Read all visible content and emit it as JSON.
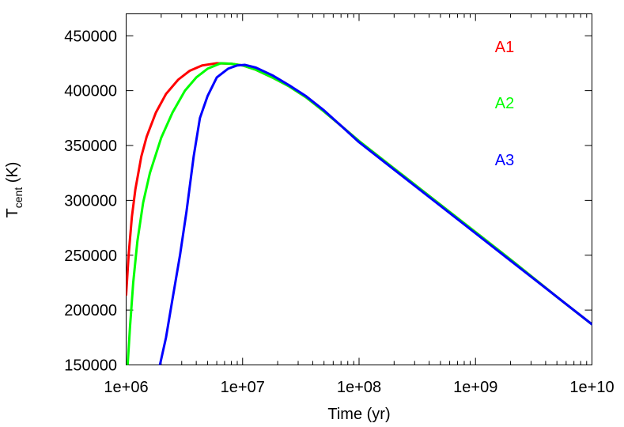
{
  "chart_data": {
    "type": "line",
    "xscale": "log",
    "xlabel": "Time (yr)",
    "ylabel_main": "T",
    "ylabel_sub": "cent",
    "ylabel_unit": " (K)",
    "xlim": [
      1000000,
      10000000000
    ],
    "ylim": [
      150000,
      470000
    ],
    "xticks": [
      {
        "value": 1000000,
        "label": "1e+06"
      },
      {
        "value": 10000000,
        "label": "1e+07"
      },
      {
        "value": 100000000,
        "label": "1e+08"
      },
      {
        "value": 1000000000,
        "label": "1e+09"
      },
      {
        "value": 10000000000,
        "label": "1e+10"
      }
    ],
    "yticks": [
      {
        "value": 150000,
        "label": "150000"
      },
      {
        "value": 200000,
        "label": "200000"
      },
      {
        "value": 250000,
        "label": "250000"
      },
      {
        "value": 300000,
        "label": "300000"
      },
      {
        "value": 350000,
        "label": "350000"
      },
      {
        "value": 400000,
        "label": "400000"
      },
      {
        "value": 450000,
        "label": "450000"
      }
    ],
    "series": [
      {
        "name": "A1",
        "color": "#ff0000",
        "points": [
          [
            1000000,
            214000
          ],
          [
            1050000,
            250000
          ],
          [
            1120000,
            285000
          ],
          [
            1200000,
            310000
          ],
          [
            1350000,
            340000
          ],
          [
            1500000,
            358000
          ],
          [
            1800000,
            380000
          ],
          [
            2200000,
            397000
          ],
          [
            2800000,
            410000
          ],
          [
            3500000,
            418000
          ],
          [
            4500000,
            423000
          ],
          [
            6000000,
            425000
          ],
          [
            8000000,
            424500
          ],
          [
            10000000,
            423000
          ],
          [
            13000000,
            419000
          ],
          [
            18000000,
            412000
          ],
          [
            25000000,
            404000
          ],
          [
            35000000,
            394000
          ],
          [
            50000000,
            381000
          ],
          [
            70000000,
            368000
          ],
          [
            100000000,
            354000
          ],
          [
            200000000,
            329000
          ],
          [
            500000000,
            296000
          ],
          [
            1000000000,
            271000
          ],
          [
            2000000000,
            246000
          ],
          [
            5000000000,
            212000
          ],
          [
            10000000000,
            187000
          ]
        ]
      },
      {
        "name": "A2",
        "color": "#00ff00",
        "points": [
          [
            1030000,
            150000
          ],
          [
            1080000,
            185000
          ],
          [
            1150000,
            225000
          ],
          [
            1250000,
            263000
          ],
          [
            1400000,
            298000
          ],
          [
            1600000,
            325000
          ],
          [
            2000000,
            357000
          ],
          [
            2500000,
            380000
          ],
          [
            3200000,
            400000
          ],
          [
            4000000,
            412000
          ],
          [
            5000000,
            420000
          ],
          [
            6500000,
            425000
          ],
          [
            8000000,
            424500
          ],
          [
            10000000,
            423000
          ],
          [
            13000000,
            419000
          ],
          [
            18000000,
            412000
          ],
          [
            25000000,
            404000
          ],
          [
            35000000,
            394000
          ],
          [
            50000000,
            381000
          ],
          [
            70000000,
            368000
          ],
          [
            100000000,
            354000
          ],
          [
            200000000,
            329000
          ],
          [
            500000000,
            296000
          ],
          [
            1000000000,
            271000
          ],
          [
            2000000000,
            246000
          ],
          [
            5000000000,
            212000
          ],
          [
            10000000000,
            187000
          ]
        ]
      },
      {
        "name": "A3",
        "color": "#0000ff",
        "points": [
          [
            1950000,
            150000
          ],
          [
            2200000,
            175000
          ],
          [
            2500000,
            210000
          ],
          [
            2900000,
            250000
          ],
          [
            3300000,
            290000
          ],
          [
            3800000,
            340000
          ],
          [
            4300000,
            375000
          ],
          [
            5000000,
            395000
          ],
          [
            6000000,
            412000
          ],
          [
            7500000,
            420000
          ],
          [
            9000000,
            423000
          ],
          [
            10500000,
            423500
          ],
          [
            13000000,
            421000
          ],
          [
            18000000,
            414000
          ],
          [
            25000000,
            405000
          ],
          [
            35000000,
            395000
          ],
          [
            50000000,
            382000
          ],
          [
            70000000,
            368000
          ],
          [
            100000000,
            353000
          ],
          [
            200000000,
            328000
          ],
          [
            500000000,
            295000
          ],
          [
            1000000000,
            270000
          ],
          [
            2000000000,
            245000
          ],
          [
            5000000000,
            212000
          ],
          [
            10000000000,
            187000
          ]
        ]
      }
    ],
    "legend": [
      "A1",
      "A2",
      "A3"
    ],
    "legend_position": "top-right",
    "grid": false
  }
}
